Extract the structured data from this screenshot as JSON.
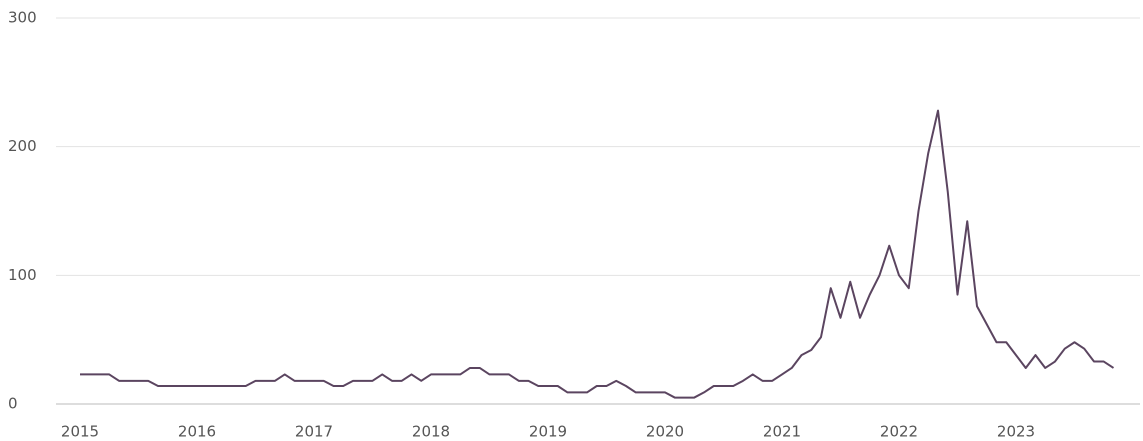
{
  "chart_data": {
    "type": "line",
    "categories": [
      "2015",
      null,
      null,
      null,
      null,
      null,
      null,
      null,
      null,
      null,
      null,
      null,
      "2016",
      null,
      null,
      null,
      null,
      null,
      null,
      null,
      null,
      null,
      null,
      null,
      "2017",
      null,
      null,
      null,
      null,
      null,
      null,
      null,
      null,
      null,
      null,
      null,
      "2018",
      null,
      null,
      null,
      null,
      null,
      null,
      null,
      null,
      null,
      null,
      null,
      "2019",
      null,
      null,
      null,
      null,
      null,
      null,
      null,
      null,
      null,
      null,
      null,
      "2020",
      null,
      null,
      null,
      null,
      null,
      null,
      null,
      null,
      null,
      null,
      null,
      "2021",
      null,
      null,
      null,
      null,
      null,
      null,
      null,
      null,
      null,
      null,
      null,
      "2022",
      null,
      null,
      null,
      null,
      null,
      null,
      null,
      null,
      null,
      null,
      null,
      "2023",
      null,
      null,
      null,
      null,
      null,
      null,
      null,
      null,
      null,
      null
    ],
    "series": [
      {
        "color": "#5b4560",
        "values": [
          23,
          23,
          23,
          23,
          18,
          18,
          18,
          18,
          14,
          14,
          14,
          14,
          14,
          14,
          14,
          14,
          14,
          14,
          18,
          18,
          18,
          23,
          18,
          18,
          18,
          18,
          14,
          14,
          18,
          18,
          18,
          23,
          18,
          18,
          23,
          18,
          23,
          23,
          23,
          23,
          28,
          28,
          23,
          23,
          23,
          18,
          18,
          14,
          14,
          14,
          9,
          9,
          9,
          14,
          14,
          18,
          14,
          9,
          9,
          9,
          9,
          5,
          5,
          5,
          9,
          14,
          14,
          14,
          18,
          23,
          18,
          18,
          23,
          28,
          38,
          42,
          52,
          90,
          67,
          95,
          67,
          85,
          100,
          123,
          100,
          90,
          150,
          195,
          228,
          165,
          85,
          142,
          76,
          62,
          48,
          48,
          38,
          28,
          38,
          28,
          33,
          43,
          48,
          43,
          33,
          33,
          28
        ]
      }
    ],
    "ylim": [
      0,
      300
    ],
    "yticks": [
      0,
      100,
      200,
      300
    ],
    "grid": true
  }
}
